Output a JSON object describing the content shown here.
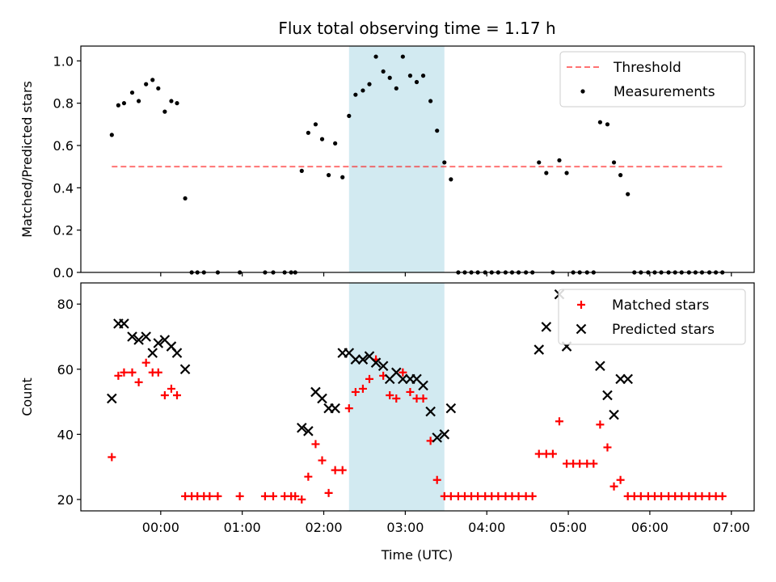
{
  "chart_data": {
    "title": "Flux total observing time = 1.17 h",
    "xlabel": "Time (UTC)",
    "x_tick_labels": [
      "00:00",
      "01:00",
      "02:00",
      "03:00",
      "04:00",
      "05:00",
      "06:00",
      "07:00"
    ],
    "x_tick_values": [
      0,
      1,
      2,
      3,
      4,
      5,
      6,
      7
    ],
    "xlim": [
      -0.98,
      7.28
    ],
    "highlight_span": [
      2.31,
      3.48
    ],
    "colors": {
      "highlight": "#add8e6",
      "threshold": "#ff0000",
      "measurements": "#000000",
      "matched": "#ff0000",
      "predicted": "#000000"
    },
    "panels": [
      {
        "type": "scatter",
        "ylabel": "Matched/Predicted stars",
        "ylim": [
          0,
          1.07
        ],
        "y_tick_labels": [
          "0.0",
          "0.2",
          "0.4",
          "0.6",
          "0.8",
          "1.0"
        ],
        "y_tick_values": [
          0,
          0.2,
          0.4,
          0.6,
          0.8,
          1.0
        ],
        "legend_position": "top-right",
        "threshold": {
          "name": "Threshold",
          "y": 0.5,
          "x_range": [
            -0.6,
            6.9
          ]
        },
        "series": [
          {
            "name": "Measurements",
            "marker": "dot",
            "points": [
              [
                -0.6,
                0.65
              ],
              [
                -0.52,
                0.79
              ],
              [
                -0.45,
                0.8
              ],
              [
                -0.35,
                0.85
              ],
              [
                -0.27,
                0.81
              ],
              [
                -0.18,
                0.89
              ],
              [
                -0.1,
                0.91
              ],
              [
                -0.03,
                0.87
              ],
              [
                0.05,
                0.76
              ],
              [
                0.13,
                0.81
              ],
              [
                0.2,
                0.8
              ],
              [
                0.3,
                0.35
              ],
              [
                0.38,
                0
              ],
              [
                0.45,
                0
              ],
              [
                0.53,
                0
              ],
              [
                0.7,
                0
              ],
              [
                0.97,
                0
              ],
              [
                1.28,
                0
              ],
              [
                1.38,
                0
              ],
              [
                1.52,
                0
              ],
              [
                1.6,
                0
              ],
              [
                1.65,
                0
              ],
              [
                1.73,
                0.48
              ],
              [
                1.81,
                0.66
              ],
              [
                1.9,
                0.7
              ],
              [
                1.98,
                0.63
              ],
              [
                2.06,
                0.46
              ],
              [
                2.14,
                0.61
              ],
              [
                2.23,
                0.45
              ],
              [
                2.31,
                0.74
              ],
              [
                2.39,
                0.84
              ],
              [
                2.48,
                0.86
              ],
              [
                2.56,
                0.89
              ],
              [
                2.64,
                1.02
              ],
              [
                2.73,
                0.95
              ],
              [
                2.81,
                0.92
              ],
              [
                2.89,
                0.87
              ],
              [
                2.97,
                1.02
              ],
              [
                3.06,
                0.93
              ],
              [
                3.14,
                0.9
              ],
              [
                3.22,
                0.93
              ],
              [
                3.31,
                0.81
              ],
              [
                3.39,
                0.67
              ],
              [
                3.48,
                0.52
              ],
              [
                3.56,
                0.44
              ],
              [
                3.65,
                0
              ],
              [
                3.73,
                0
              ],
              [
                3.81,
                0
              ],
              [
                3.89,
                0
              ],
              [
                3.98,
                0
              ],
              [
                4.06,
                0
              ],
              [
                4.14,
                0
              ],
              [
                4.23,
                0
              ],
              [
                4.31,
                0
              ],
              [
                4.39,
                0
              ],
              [
                4.48,
                0
              ],
              [
                4.56,
                0
              ],
              [
                4.64,
                0.52
              ],
              [
                4.73,
                0.47
              ],
              [
                4.81,
                0
              ],
              [
                4.89,
                0.53
              ],
              [
                4.98,
                0.47
              ],
              [
                5.06,
                0
              ],
              [
                5.14,
                0
              ],
              [
                5.23,
                0
              ],
              [
                5.31,
                0
              ],
              [
                5.39,
                0.71
              ],
              [
                5.48,
                0.7
              ],
              [
                5.56,
                0.52
              ],
              [
                5.64,
                0.46
              ],
              [
                5.73,
                0.37
              ],
              [
                5.81,
                0
              ],
              [
                5.89,
                0
              ],
              [
                5.98,
                0
              ],
              [
                6.06,
                0
              ],
              [
                6.14,
                0
              ],
              [
                6.23,
                0
              ],
              [
                6.31,
                0
              ],
              [
                6.39,
                0
              ],
              [
                6.48,
                0
              ],
              [
                6.56,
                0
              ],
              [
                6.64,
                0
              ],
              [
                6.73,
                0
              ],
              [
                6.81,
                0
              ],
              [
                6.89,
                0
              ]
            ]
          }
        ]
      },
      {
        "type": "scatter",
        "ylabel": "Count",
        "ylim": [
          16.5,
          86.5
        ],
        "y_tick_labels": [
          "20",
          "40",
          "60",
          "80"
        ],
        "y_tick_values": [
          20,
          40,
          60,
          80
        ],
        "legend_position": "top-right",
        "series": [
          {
            "name": "Matched stars",
            "marker": "plus",
            "points": [
              [
                -0.6,
                33
              ],
              [
                -0.52,
                58
              ],
              [
                -0.45,
                59
              ],
              [
                -0.35,
                59
              ],
              [
                -0.27,
                56
              ],
              [
                -0.18,
                62
              ],
              [
                -0.1,
                59
              ],
              [
                -0.03,
                59
              ],
              [
                0.05,
                52
              ],
              [
                0.13,
                54
              ],
              [
                0.2,
                52
              ],
              [
                0.3,
                21
              ],
              [
                0.38,
                21
              ],
              [
                0.45,
                21
              ],
              [
                0.53,
                21
              ],
              [
                0.6,
                21
              ],
              [
                0.7,
                21
              ],
              [
                0.97,
                21
              ],
              [
                1.28,
                21
              ],
              [
                1.38,
                21
              ],
              [
                1.52,
                21
              ],
              [
                1.6,
                21
              ],
              [
                1.65,
                21
              ],
              [
                1.73,
                20
              ],
              [
                1.81,
                27
              ],
              [
                1.9,
                37
              ],
              [
                1.98,
                32
              ],
              [
                2.06,
                22
              ],
              [
                2.14,
                29
              ],
              [
                2.23,
                29
              ],
              [
                2.31,
                48
              ],
              [
                2.39,
                53
              ],
              [
                2.48,
                54
              ],
              [
                2.56,
                57
              ],
              [
                2.64,
                63
              ],
              [
                2.73,
                58
              ],
              [
                2.81,
                52
              ],
              [
                2.89,
                51
              ],
              [
                2.97,
                59
              ],
              [
                3.06,
                53
              ],
              [
                3.14,
                51
              ],
              [
                3.22,
                51
              ],
              [
                3.31,
                38
              ],
              [
                3.39,
                26
              ],
              [
                3.48,
                21
              ],
              [
                3.56,
                21
              ],
              [
                3.65,
                21
              ],
              [
                3.73,
                21
              ],
              [
                3.81,
                21
              ],
              [
                3.89,
                21
              ],
              [
                3.98,
                21
              ],
              [
                4.06,
                21
              ],
              [
                4.14,
                21
              ],
              [
                4.23,
                21
              ],
              [
                4.31,
                21
              ],
              [
                4.39,
                21
              ],
              [
                4.48,
                21
              ],
              [
                4.56,
                21
              ],
              [
                4.64,
                34
              ],
              [
                4.73,
                34
              ],
              [
                4.81,
                34
              ],
              [
                4.89,
                44
              ],
              [
                4.98,
                31
              ],
              [
                5.06,
                31
              ],
              [
                5.14,
                31
              ],
              [
                5.23,
                31
              ],
              [
                5.31,
                31
              ],
              [
                5.39,
                43
              ],
              [
                5.48,
                36
              ],
              [
                5.56,
                24
              ],
              [
                5.64,
                26
              ],
              [
                5.73,
                21
              ],
              [
                5.81,
                21
              ],
              [
                5.89,
                21
              ],
              [
                5.98,
                21
              ],
              [
                6.06,
                21
              ],
              [
                6.14,
                21
              ],
              [
                6.23,
                21
              ],
              [
                6.31,
                21
              ],
              [
                6.39,
                21
              ],
              [
                6.48,
                21
              ],
              [
                6.56,
                21
              ],
              [
                6.64,
                21
              ],
              [
                6.73,
                21
              ],
              [
                6.81,
                21
              ],
              [
                6.89,
                21
              ]
            ]
          },
          {
            "name": "Predicted stars",
            "marker": "x",
            "points": [
              [
                -0.6,
                51
              ],
              [
                -0.52,
                74
              ],
              [
                -0.45,
                74
              ],
              [
                -0.35,
                70
              ],
              [
                -0.27,
                69
              ],
              [
                -0.18,
                70
              ],
              [
                -0.1,
                65
              ],
              [
                -0.03,
                68
              ],
              [
                0.05,
                69
              ],
              [
                0.13,
                67
              ],
              [
                0.2,
                65
              ],
              [
                0.3,
                60
              ],
              [
                1.73,
                42
              ],
              [
                1.81,
                41
              ],
              [
                1.9,
                53
              ],
              [
                1.98,
                51
              ],
              [
                2.06,
                48
              ],
              [
                2.14,
                48
              ],
              [
                2.23,
                65
              ],
              [
                2.31,
                65
              ],
              [
                2.39,
                63
              ],
              [
                2.48,
                63
              ],
              [
                2.56,
                64
              ],
              [
                2.64,
                62
              ],
              [
                2.73,
                61
              ],
              [
                2.81,
                57
              ],
              [
                2.89,
                59
              ],
              [
                2.97,
                57
              ],
              [
                3.06,
                57
              ],
              [
                3.14,
                57
              ],
              [
                3.22,
                55
              ],
              [
                3.31,
                47
              ],
              [
                3.39,
                39
              ],
              [
                3.48,
                40
              ],
              [
                3.56,
                48
              ],
              [
                4.64,
                66
              ],
              [
                4.73,
                73
              ],
              [
                4.89,
                83
              ],
              [
                4.98,
                67
              ],
              [
                5.39,
                61
              ],
              [
                5.48,
                52
              ],
              [
                5.56,
                46
              ],
              [
                5.64,
                57
              ],
              [
                5.73,
                57
              ]
            ]
          }
        ]
      }
    ]
  }
}
